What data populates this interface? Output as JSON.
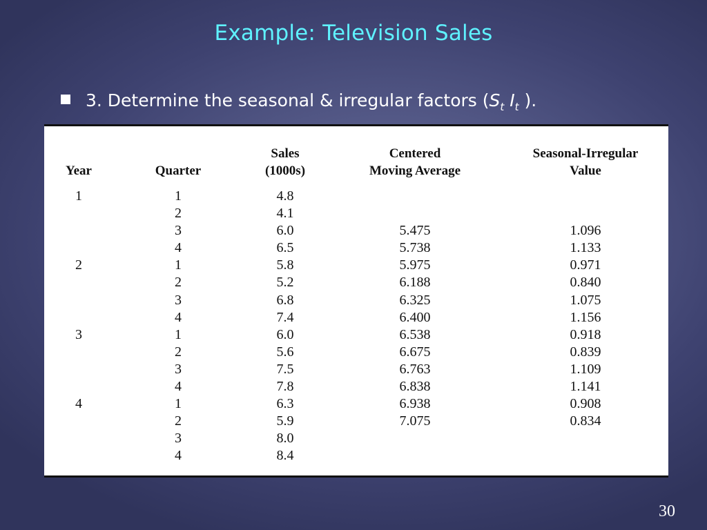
{
  "slide": {
    "title": "Example:  Television Sales",
    "bullet": {
      "text": "3.  Determine the seasonal & irregular factors (",
      "symbol_s": "S",
      "sub_s": "t",
      "symbol_i": "I",
      "sub_i": "t",
      "suffix": " )."
    },
    "page_number": "30"
  },
  "table": {
    "headers": {
      "year": "Year",
      "quarter": "Quarter",
      "sales_line1": "Sales",
      "sales_line2": "(1000s)",
      "cma_line1": "Centered",
      "cma_line2": "Moving Average",
      "sir_line1": "Seasonal-Irregular",
      "sir_line2": "Value"
    },
    "rows": [
      {
        "year": "1",
        "quarter": "1",
        "sales": "4.8",
        "cma": "",
        "sir": ""
      },
      {
        "year": "",
        "quarter": "2",
        "sales": "4.1",
        "cma": "",
        "sir": ""
      },
      {
        "year": "",
        "quarter": "3",
        "sales": "6.0",
        "cma": "5.475",
        "sir": "1.096"
      },
      {
        "year": "",
        "quarter": "4",
        "sales": "6.5",
        "cma": "5.738",
        "sir": "1.133"
      },
      {
        "year": "2",
        "quarter": "1",
        "sales": "5.8",
        "cma": "5.975",
        "sir": "0.971"
      },
      {
        "year": "",
        "quarter": "2",
        "sales": "5.2",
        "cma": "6.188",
        "sir": "0.840"
      },
      {
        "year": "",
        "quarter": "3",
        "sales": "6.8",
        "cma": "6.325",
        "sir": "1.075"
      },
      {
        "year": "",
        "quarter": "4",
        "sales": "7.4",
        "cma": "6.400",
        "sir": "1.156"
      },
      {
        "year": "3",
        "quarter": "1",
        "sales": "6.0",
        "cma": "6.538",
        "sir": "0.918"
      },
      {
        "year": "",
        "quarter": "2",
        "sales": "5.6",
        "cma": "6.675",
        "sir": "0.839"
      },
      {
        "year": "",
        "quarter": "3",
        "sales": "7.5",
        "cma": "6.763",
        "sir": "1.109"
      },
      {
        "year": "",
        "quarter": "4",
        "sales": "7.8",
        "cma": "6.838",
        "sir": "1.141"
      },
      {
        "year": "4",
        "quarter": "1",
        "sales": "6.3",
        "cma": "6.938",
        "sir": "0.908"
      },
      {
        "year": "",
        "quarter": "2",
        "sales": "5.9",
        "cma": "7.075",
        "sir": "0.834"
      },
      {
        "year": "",
        "quarter": "3",
        "sales": "8.0",
        "cma": "",
        "sir": ""
      },
      {
        "year": "",
        "quarter": "4",
        "sales": "8.4",
        "cma": "",
        "sir": ""
      }
    ]
  },
  "colors": {
    "title": "#5ff2ff",
    "background": "#555a88",
    "text": "#ffffff"
  }
}
